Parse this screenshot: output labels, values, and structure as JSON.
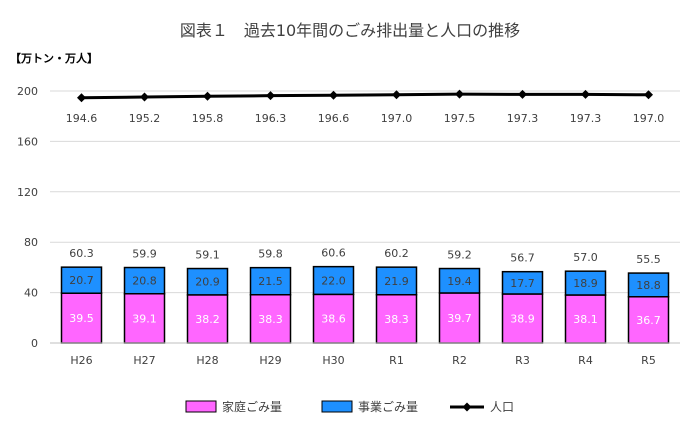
{
  "chart_data": {
    "type": "bar",
    "title": "図表１　過去10年間のごみ排出量と人口の推移",
    "unit_label": "【万トン・万人】",
    "categories": [
      "H26",
      "H27",
      "H28",
      "H29",
      "H30",
      "R1",
      "R2",
      "R3",
      "R4",
      "R5"
    ],
    "ylim": [
      0,
      200
    ],
    "yticks": [
      "0",
      "40",
      "80",
      "120",
      "160",
      "200"
    ],
    "ytick_values": [
      0,
      40,
      80,
      120,
      160,
      200
    ],
    "grid": true,
    "legend_position": "bottom",
    "series": [
      {
        "name": "家庭ごみ量",
        "kind": "stacked-bar",
        "color": "#ff66ff",
        "values": [
          39.5,
          39.1,
          38.2,
          38.3,
          38.6,
          38.3,
          39.7,
          38.9,
          38.1,
          36.7
        ],
        "labels": [
          "39.5",
          "39.1",
          "38.2",
          "38.3",
          "38.6",
          "38.3",
          "39.7",
          "38.9",
          "38.1",
          "36.7"
        ]
      },
      {
        "name": "事業ごみ量",
        "kind": "stacked-bar",
        "color": "#1e90ff",
        "values": [
          20.7,
          20.8,
          20.9,
          21.5,
          22.0,
          21.9,
          19.4,
          17.7,
          18.9,
          18.8
        ],
        "labels": [
          "20.7",
          "20.8",
          "20.9",
          "21.5",
          "22.0",
          "21.9",
          "19.4",
          "17.7",
          "18.9",
          "18.8"
        ]
      },
      {
        "name": "人口",
        "kind": "line",
        "color": "#000000",
        "values": [
          194.6,
          195.2,
          195.8,
          196.3,
          196.6,
          197.0,
          197.5,
          197.3,
          197.3,
          197.0
        ],
        "labels": [
          "194.6",
          "195.2",
          "195.8",
          "196.3",
          "196.6",
          "197.0",
          "197.5",
          "197.3",
          "197.3",
          "197.0"
        ]
      }
    ],
    "totals": [
      "60.3",
      "59.9",
      "59.1",
      "59.8",
      "60.6",
      "60.2",
      "59.2",
      "56.7",
      "57.0",
      "55.5"
    ]
  }
}
